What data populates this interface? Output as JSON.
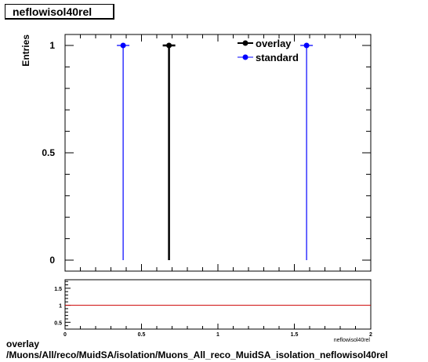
{
  "page": {
    "title_box": "neflowisol40rel",
    "footer_line1": "overlay",
    "footer_line2": "/Muons/All/reco/MuidSA/isolation/Muons_All_reco_MuidSA_isolation_neflowisol40rel"
  },
  "colors": {
    "overlay": "#000000",
    "standard": "#0000ff",
    "ratio_line": "#cc0000"
  },
  "chart_data": [
    {
      "type": "scatter",
      "title": "neflowisol40rel",
      "ylabel": "Entries",
      "xlabel": "",
      "xlim": [
        0,
        2
      ],
      "ylim": [
        0,
        1.05
      ],
      "ytick_labels": [
        "0",
        "0.5",
        "1"
      ],
      "legend": "top-right",
      "series": [
        {
          "name": "overlay",
          "color": "#000000",
          "points": [
            {
              "x": 0.68,
              "y": 1
            }
          ]
        },
        {
          "name": "standard",
          "color": "#0000ff",
          "points": [
            {
              "x": 0.38,
              "y": 1
            },
            {
              "x": 1.58,
              "y": 1
            }
          ]
        }
      ]
    },
    {
      "type": "line",
      "xlabel": "neflowisol40rel",
      "xlim": [
        0,
        2
      ],
      "ylim": [
        0.3,
        1.75
      ],
      "xtick_labels": [
        "0",
        "0.5",
        "1",
        "1.5",
        "2"
      ],
      "ytick_labels": [
        "0.5",
        "1",
        "1.5"
      ],
      "series": [
        {
          "color": "#cc0000",
          "x": [
            0,
            2
          ],
          "y": [
            1,
            1
          ]
        }
      ]
    }
  ]
}
